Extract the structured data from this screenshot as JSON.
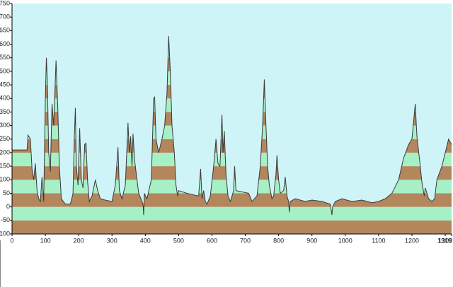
{
  "chart_data": {
    "type": "area",
    "xlim": [
      0,
      1319
    ],
    "ylim": [
      -100,
      750
    ],
    "xticks": [
      0,
      100,
      200,
      300,
      400,
      500,
      600,
      700,
      800,
      900,
      1000,
      1100,
      1200,
      1300,
      1319
    ],
    "yticks": [
      -100,
      -50,
      0,
      50,
      100,
      150,
      200,
      250,
      300,
      350,
      400,
      450,
      500,
      550,
      600,
      650,
      700,
      750
    ],
    "background": "#cff4f7",
    "band_colors": [
      "#b3865c",
      "#a6f0c6"
    ],
    "line_color": "#3a3a3a",
    "x": [
      0,
      45,
      48,
      55,
      60,
      65,
      70,
      75,
      80,
      85,
      90,
      95,
      100,
      103,
      106,
      110,
      115,
      120,
      125,
      132,
      137,
      142,
      148,
      160,
      175,
      183,
      187,
      190,
      193,
      198,
      203,
      208,
      213,
      218,
      222,
      227,
      232,
      240,
      250,
      257,
      265,
      280,
      300,
      310,
      318,
      322,
      330,
      340,
      348,
      352,
      356,
      360,
      363,
      368,
      372,
      375,
      380,
      387,
      393,
      395,
      397,
      405,
      418,
      425,
      428,
      432,
      440,
      450,
      458,
      465,
      470,
      475,
      480,
      487,
      492,
      497,
      500,
      525,
      560,
      566,
      570,
      575,
      580,
      585,
      595,
      605,
      612,
      618,
      624,
      630,
      633,
      637,
      642,
      648,
      655,
      665,
      668,
      672,
      710,
      720,
      735,
      745,
      752,
      757,
      762,
      767,
      772,
      780,
      785,
      792,
      795,
      800,
      805,
      815,
      820,
      825,
      830,
      832,
      835,
      850,
      880,
      900,
      930,
      955,
      960,
      962,
      970,
      990,
      1020,
      1050,
      1080,
      1100,
      1120,
      1140,
      1160,
      1175,
      1190,
      1200,
      1210,
      1215,
      1225,
      1230,
      1237,
      1240,
      1250,
      1260,
      1268,
      1275,
      1290,
      1300,
      1310,
      1319
    ],
    "values": [
      210,
      210,
      265,
      250,
      140,
      100,
      160,
      60,
      30,
      20,
      110,
      20,
      400,
      550,
      460,
      200,
      130,
      380,
      300,
      540,
      380,
      150,
      30,
      10,
      10,
      50,
      260,
      365,
      150,
      80,
      290,
      100,
      70,
      230,
      235,
      90,
      20,
      40,
      100,
      60,
      30,
      25,
      20,
      80,
      220,
      60,
      30,
      80,
      310,
      200,
      260,
      150,
      270,
      170,
      130,
      100,
      50,
      30,
      10,
      -30,
      50,
      30,
      100,
      400,
      405,
      250,
      200,
      250,
      300,
      420,
      630,
      500,
      300,
      200,
      80,
      40,
      60,
      50,
      40,
      140,
      30,
      60,
      20,
      10,
      40,
      150,
      250,
      160,
      150,
      340,
      200,
      280,
      120,
      40,
      20,
      60,
      150,
      60,
      50,
      20,
      40,
      150,
      300,
      470,
      300,
      150,
      80,
      30,
      40,
      120,
      190,
      100,
      50,
      60,
      110,
      40,
      20,
      -20,
      20,
      30,
      20,
      25,
      20,
      10,
      -30,
      0,
      20,
      30,
      20,
      25,
      15,
      20,
      30,
      50,
      100,
      180,
      230,
      250,
      380,
      260,
      150,
      90,
      40,
      70,
      30,
      20,
      30,
      100,
      150,
      200,
      250,
      230
    ]
  }
}
